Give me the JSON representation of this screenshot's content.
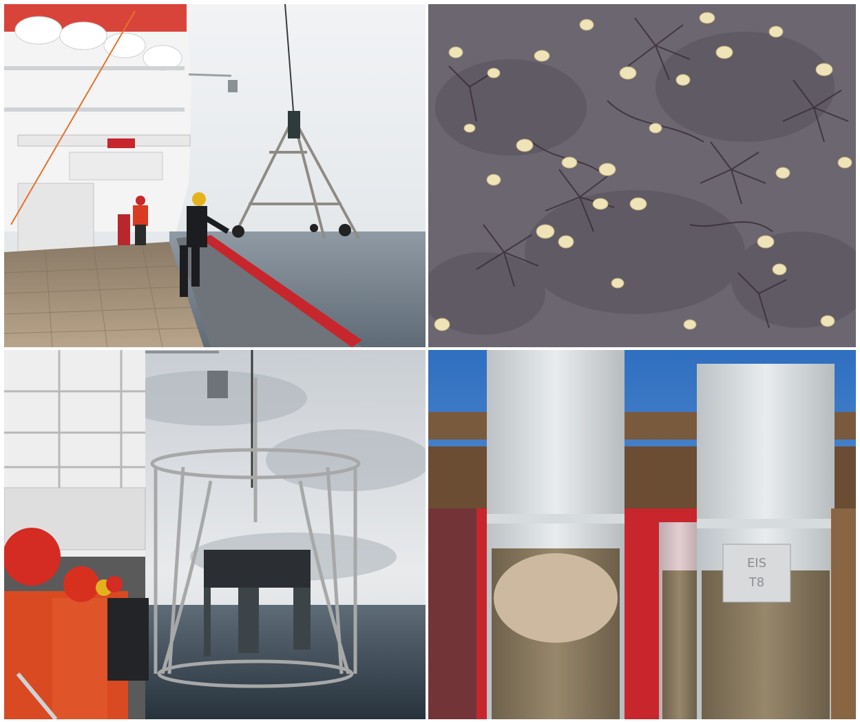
{
  "figure": {
    "panels": [
      {
        "id": "top-left",
        "subject": "deck"
      },
      {
        "id": "top-right",
        "subject": "seafloor"
      },
      {
        "id": "bottom-left",
        "subject": "corer-deployment"
      },
      {
        "id": "bottom-right",
        "subject": "sediment-cores"
      }
    ],
    "core_label": {
      "line1": "EIS",
      "line2": "T8"
    },
    "colors": {
      "sky": "#e9ecef",
      "sea": "#7d8a96",
      "hull_red": "#c7262d",
      "deck_wood": "#a9967d",
      "seafloor": "#6b6670",
      "sediment": "#8d7d63",
      "rack_wood": "#6a4d33",
      "sky_blue": "#2f6fc0"
    }
  }
}
